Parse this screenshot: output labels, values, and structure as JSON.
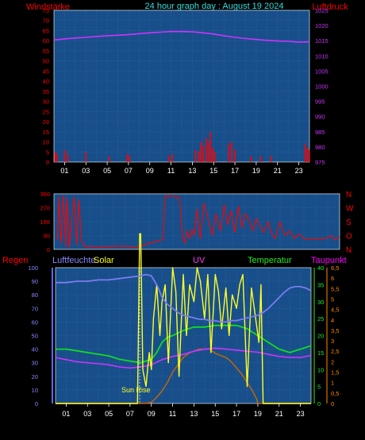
{
  "header": {
    "left_label": "Windstärke",
    "title": "24 hour graph day : August 19 2024",
    "right_label": "Luftdruck"
  },
  "labels": {
    "regen": "Regen",
    "luftfeuchte": "Luftfeuchte",
    "solar": "Solar",
    "uv": "UV",
    "temperatur": "Temperatur",
    "taupunkt": "Taupunkt",
    "sun_rise": "Sun Rise"
  },
  "colors": {
    "background": "#000000",
    "plot": "#184f8a",
    "grid": "#2d6fb0",
    "red": "#ff0000",
    "pressure": "#cc33ff",
    "humidity": "#7b7bf0",
    "solar": "#ffff22",
    "uv": "#cc6600",
    "temperature": "#11dd22",
    "dewpoint": "#cc33ff",
    "right_axis_dew": "#ff8800",
    "axis_white": "#ffffff"
  },
  "x_tick_labels": [
    "01",
    "03",
    "05",
    "07",
    "09",
    "11",
    "13",
    "15",
    "17",
    "19",
    "21",
    "23"
  ],
  "chart_data": [
    {
      "type": "bar",
      "title": "Windstärke / Luftdruck",
      "xlim": [
        0,
        24
      ],
      "left_axis": {
        "label": "Windstärke",
        "ticks": [
          "0",
          "5",
          "10",
          "15",
          "20",
          "25",
          "30",
          "35",
          "40",
          "45",
          "50",
          "55",
          "60",
          "65",
          "70",
          "75"
        ],
        "ylim": [
          0,
          75
        ]
      },
      "right_axis": {
        "label": "Luftdruck",
        "ticks": [
          "975",
          "980",
          "985",
          "990",
          "995",
          "1000",
          "1005",
          "1010",
          "1015",
          "1020",
          "1025"
        ],
        "ylim": [
          975,
          1025
        ]
      },
      "series": [
        {
          "name": "Windstärke",
          "kind": "bar",
          "x": [
            0.1,
            0.3,
            1.0,
            1.3,
            3.0,
            5.2,
            6.9,
            7.1,
            10.8,
            11.1,
            13.3,
            13.6,
            13.8,
            14.0,
            14.3,
            14.5,
            14.7,
            14.9,
            15.1,
            16.4,
            16.7,
            17.0,
            18.5,
            19.4,
            20.4,
            23.6,
            23.8,
            24.0
          ],
          "y": [
            5,
            4,
            6,
            4,
            5,
            3,
            4,
            3,
            3,
            4,
            6,
            5,
            10,
            8,
            12,
            10,
            15,
            7,
            5,
            9,
            10,
            6,
            3,
            3,
            3,
            9,
            7,
            6
          ]
        },
        {
          "name": "Luftdruck",
          "kind": "line",
          "x": [
            0,
            1,
            2,
            3,
            4,
            5,
            6,
            7,
            8,
            9,
            10,
            11,
            12,
            13,
            14,
            15,
            16,
            17,
            18,
            19,
            20,
            21,
            22,
            23,
            24
          ],
          "y": [
            1015.2,
            1015.6,
            1015.9,
            1016.1,
            1016.4,
            1016.6,
            1016.8,
            1017.0,
            1017.3,
            1017.6,
            1017.8,
            1018.0,
            1018.0,
            1017.9,
            1017.6,
            1017.2,
            1016.6,
            1016.1,
            1015.7,
            1015.4,
            1015.1,
            1014.9,
            1014.8,
            1014.5,
            1014.6
          ]
        }
      ]
    },
    {
      "type": "line",
      "title": "Windrichtung",
      "xlim": [
        0,
        24
      ],
      "left_axis": {
        "ticks": [
          "0",
          "90",
          "180",
          "270",
          "360"
        ],
        "ylim": [
          0,
          360
        ]
      },
      "right_axis": {
        "ticks": [
          "N",
          "W",
          "S",
          "O",
          "N"
        ]
      },
      "series": [
        {
          "name": "Windrichtung",
          "x": [
            0.3,
            0.4,
            0.6,
            0.8,
            1.0,
            1.1,
            1.3,
            1.5,
            1.7,
            1.9,
            2.1,
            2.3,
            2.6,
            3.0,
            4.0,
            5.0,
            6.0,
            7.0,
            8.0,
            8.5,
            9.0,
            9.2,
            9.3,
            9.6,
            10.0,
            10.5,
            10.6,
            10.8,
            11.0,
            11.2,
            11.4,
            11.6,
            11.8,
            12.0,
            12.3,
            12.6,
            13.0,
            13.3,
            13.6,
            14.0,
            14.3,
            14.6,
            14.9,
            15.2,
            15.5,
            15.8,
            16.1,
            16.4,
            16.7,
            17.0,
            17.3,
            17.6,
            18.0,
            18.3,
            18.6,
            19.0,
            19.4,
            19.8,
            20.2,
            20.6,
            21.0,
            21.5,
            22.0,
            22.5,
            23.0,
            23.3,
            23.6,
            24.0
          ],
          "y": [
            60,
            340,
            40,
            350,
            20,
            330,
            10,
            200,
            340,
            30,
            320,
            60,
            15,
            20,
            15,
            20,
            20,
            15,
            40,
            50,
            60,
            70,
            345,
            345,
            345,
            340,
            300,
            80,
            40,
            120,
            70,
            130,
            90,
            260,
            70,
            300,
            180,
            90,
            230,
            120,
            290,
            160,
            250,
            110,
            280,
            140,
            230,
            190,
            120,
            200,
            150,
            110,
            180,
            100,
            70,
            180,
            90,
            120,
            70,
            100,
            70,
            70,
            70,
            70,
            75,
            90,
            60,
            80
          ]
        }
      ]
    },
    {
      "type": "line",
      "title": "Regen / Luftfeuchte / Solar / UV / Temperatur / Taupunkt",
      "xlim": [
        0,
        24
      ],
      "left_axis": {
        "label": "Luftfeuchte",
        "ticks": [
          "0",
          "10",
          "20",
          "30",
          "40",
          "50",
          "60",
          "70",
          "80",
          "90",
          "100"
        ],
        "ylim": [
          0,
          100
        ]
      },
      "right_axis_temp": {
        "label": "Temperatur",
        "ticks": [
          "0",
          "5",
          "10",
          "15",
          "20",
          "25",
          "30",
          "35",
          "40"
        ],
        "ylim": [
          0,
          40
        ]
      },
      "right_axis_dew": {
        "label": "Taupunkt",
        "ticks": [
          "0",
          "0,5",
          "1",
          "1,5",
          "2",
          "2,5",
          "3",
          "3,5",
          "4",
          "4,5",
          "5",
          "5,5",
          "6",
          "6,5"
        ],
        "ylim": [
          0,
          6.5
        ]
      },
      "annotations": [
        "Sun Rise"
      ],
      "series": [
        {
          "name": "Luftfeuchte",
          "x": [
            0,
            1,
            2,
            3,
            4,
            5,
            6,
            7,
            8,
            8.5,
            9,
            9.3,
            9.6,
            10,
            10.5,
            11,
            11.5,
            12,
            12.5,
            13,
            13.5,
            14,
            14.5,
            15,
            15.5,
            16,
            16.5,
            17,
            17.5,
            18,
            18.5,
            19,
            19.5,
            20,
            20.5,
            21,
            21.5,
            22,
            22.5,
            23,
            23.5,
            24
          ],
          "y": [
            89,
            89,
            90,
            90,
            91,
            91,
            92,
            93,
            94,
            95,
            94,
            90,
            86,
            78,
            73,
            70,
            67,
            65,
            64,
            63,
            62,
            62,
            61,
            61,
            60,
            60,
            61,
            61,
            62,
            63,
            64,
            65,
            67,
            70,
            74,
            78,
            82,
            85,
            86,
            86,
            85,
            83
          ]
        },
        {
          "name": "Temperatur",
          "x": [
            0,
            1,
            2,
            3,
            4,
            5,
            6,
            7,
            8,
            9,
            9.5,
            10,
            10.5,
            11,
            12,
            13,
            14,
            15,
            16,
            17,
            17.5,
            18,
            18.5,
            19,
            20,
            21,
            22,
            23,
            24
          ],
          "y": [
            16,
            16,
            15.5,
            15,
            14.5,
            14,
            13,
            12.5,
            12,
            13,
            15,
            18,
            19.5,
            20,
            21.5,
            22.5,
            22.5,
            23,
            23,
            23,
            22.5,
            22,
            21,
            20,
            18,
            16,
            15,
            16,
            17
          ]
        },
        {
          "name": "Taupunkt",
          "x": [
            0,
            1,
            2,
            3,
            4,
            5,
            6,
            7,
            8,
            9,
            10,
            11,
            12,
            13,
            14,
            15,
            16,
            17,
            18,
            19,
            20,
            21,
            22,
            23,
            24
          ],
          "y": [
            2.2,
            2.1,
            2.0,
            1.95,
            1.9,
            1.85,
            1.75,
            1.7,
            1.75,
            1.85,
            2.1,
            2.25,
            2.35,
            2.5,
            2.6,
            2.65,
            2.6,
            2.55,
            2.5,
            2.45,
            2.35,
            2.25,
            2.2,
            2.2,
            2.3
          ]
        },
        {
          "name": "UV",
          "x": [
            0,
            7.9,
            8.4,
            9.0,
            9.5,
            10.0,
            10.5,
            11.0,
            12.0,
            12.5,
            13.0,
            13.5,
            14.0,
            14.5,
            15.0,
            15.5,
            16.0,
            16.5,
            17.0,
            17.5,
            18.0,
            18.5,
            18.9,
            19.0,
            24
          ],
          "y": [
            0,
            0,
            0,
            0.05,
            0.3,
            0.6,
            1.0,
            1.5,
            2.2,
            2.4,
            2.5,
            2.6,
            2.6,
            2.6,
            2.4,
            2.3,
            2.2,
            2.0,
            1.7,
            1.4,
            1.0,
            0.6,
            0.2,
            0,
            0
          ]
        },
        {
          "name": "Solar",
          "x": [
            0,
            7.7,
            7.9,
            8.0,
            8.2,
            8.5,
            8.8,
            9.0,
            9.2,
            9.5,
            9.8,
            10.0,
            10.3,
            10.6,
            11.0,
            11.3,
            11.6,
            12.0,
            12.3,
            12.6,
            13.0,
            13.3,
            13.6,
            14.0,
            14.3,
            14.6,
            15.0,
            15.3,
            15.6,
            16.0,
            16.3,
            16.6,
            17.0,
            17.3,
            17.6,
            18.0,
            18.4,
            18.8,
            19.1,
            19.3,
            19.5,
            24
          ],
          "y": [
            0,
            0,
            50,
            50,
            10,
            5,
            15,
            10,
            25,
            35,
            20,
            30,
            35,
            12,
            40,
            33,
            8,
            38,
            20,
            35,
            30,
            40,
            36,
            25,
            38,
            15,
            38,
            33,
            22,
            34,
            20,
            32,
            28,
            35,
            38,
            5,
            34,
            25,
            18,
            35,
            0,
            0
          ]
        }
      ]
    }
  ]
}
